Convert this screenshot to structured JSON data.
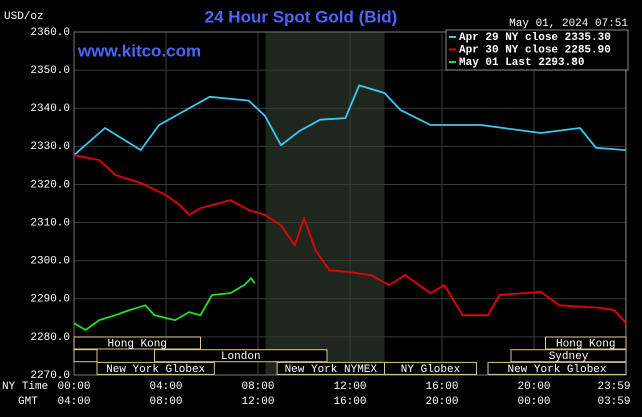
{
  "chart_data": {
    "type": "line",
    "title": "24 Hour Spot Gold (Bid)",
    "source": "www.kitco.com",
    "unit": "USD/oz",
    "timestamp": "May 01, 2024 07:51",
    "x_axis_labels": [
      "NY Time",
      "GMT"
    ],
    "xlim": [
      0,
      24
    ],
    "xticks": [
      {
        "value": 0,
        "label": "00:00"
      },
      {
        "value": 4,
        "label": "04:00"
      },
      {
        "value": 8,
        "label": "08:00"
      },
      {
        "value": 12,
        "label": "12:00"
      },
      {
        "value": 16,
        "label": "16:00"
      },
      {
        "value": 20,
        "label": "20:00"
      },
      {
        "value": 23.983,
        "label": "23:59"
      }
    ],
    "x2ticks": [
      {
        "value": 0,
        "label": "04:00"
      },
      {
        "value": 4,
        "label": "08:00"
      },
      {
        "value": 8,
        "label": "12:00"
      },
      {
        "value": 12,
        "label": "16:00"
      },
      {
        "value": 16,
        "label": "20:00"
      },
      {
        "value": 20,
        "label": "00:00"
      },
      {
        "value": 23.983,
        "label": "03:59"
      }
    ],
    "ylim": [
      2270,
      2360
    ],
    "yticks": [
      {
        "value": 2270,
        "label": "2270.0"
      },
      {
        "value": 2280,
        "label": "2280.0"
      },
      {
        "value": 2290,
        "label": "2290.0"
      },
      {
        "value": 2300,
        "label": "2300.0"
      },
      {
        "value": 2310,
        "label": "2310.0"
      },
      {
        "value": 2320,
        "label": "2320.0"
      },
      {
        "value": 2330,
        "label": "2330.0"
      },
      {
        "value": 2340,
        "label": "2340.0"
      },
      {
        "value": 2350,
        "label": "2350.0"
      },
      {
        "value": 2360,
        "label": "2360.0"
      }
    ],
    "grid": true,
    "legend": "upper right",
    "shaded_range": [
      8.33,
      13.5
    ],
    "sessions": [
      {
        "label": "Hong Kong",
        "row": 0,
        "start": 0,
        "end": 5.5
      },
      {
        "label": "Hong Kong",
        "row": 0,
        "start": 20.5,
        "end": 24
      },
      {
        "label": null,
        "row": 1,
        "start": 0,
        "end": 1
      },
      {
        "label": "London",
        "row": 1,
        "start": 3.5,
        "end": 11
      },
      {
        "label": "Sydney",
        "row": 1,
        "start": 19,
        "end": 24
      },
      {
        "label": "New York Globex",
        "row": 2,
        "start": 1,
        "end": 6.1
      },
      {
        "label": "New York NYMEX",
        "row": 2,
        "start": 8.83,
        "end": 13.5
      },
      {
        "label": "NY Globex",
        "row": 2,
        "start": 13.5,
        "end": 17.5
      },
      {
        "label": "New York Globex",
        "row": 2,
        "start": 18,
        "end": 24
      }
    ],
    "series": [
      {
        "name": "Apr 29 NY close 2335.30",
        "color": "#3cc8f0",
        "x": [
          0,
          1.35,
          2.9,
          3.7,
          5.9,
          7.6,
          8.3,
          9,
          9.8,
          10.7,
          11.8,
          12.4,
          13.5,
          14.2,
          15.5,
          17.7,
          20.3,
          22,
          22.7,
          24
        ],
        "values": [
          2327.7,
          2334.8,
          2329,
          2335.6,
          2343,
          2342,
          2338,
          2330.3,
          2334,
          2337,
          2337.4,
          2346,
          2344,
          2339.5,
          2335.6,
          2335.6,
          2333.5,
          2334.8,
          2329.6,
          2329
        ]
      },
      {
        "name": "Apr 30 NY close 2285.90",
        "color": "#e80000",
        "x": [
          0,
          1.1,
          1.8,
          2.9,
          4,
          4.6,
          5,
          5.5,
          6.8,
          7.6,
          8.3,
          9,
          9.6,
          10,
          10.5,
          11.1,
          12,
          12.9,
          13.7,
          14.4,
          15.5,
          16.1,
          16.9,
          18,
          18.5,
          20.3,
          21.1,
          22.9,
          23.5,
          24
        ],
        "values": [
          2327.7,
          2326.4,
          2322.5,
          2320.4,
          2317.2,
          2314.6,
          2312,
          2313.8,
          2315.9,
          2313.3,
          2312,
          2309.3,
          2304,
          2311.2,
          2302.8,
          2297.5,
          2297,
          2296.2,
          2293.6,
          2296.2,
          2291.5,
          2293.6,
          2285.7,
          2285.7,
          2291,
          2291.8,
          2288.3,
          2287.6,
          2287,
          2283.6
        ]
      },
      {
        "name": "May 01 Last 2293.80",
        "color": "#22e022",
        "x": [
          0,
          0.5,
          1.1,
          1.8,
          2.4,
          3.1,
          3.5,
          4.4,
          5,
          5.5,
          6,
          6.8,
          7.4,
          7.7,
          7.85
        ],
        "values": [
          2283.6,
          2281.8,
          2284.4,
          2285.7,
          2287,
          2288.3,
          2285.7,
          2284.4,
          2286.5,
          2285.7,
          2291,
          2291.5,
          2293.6,
          2295.4,
          2294.1
        ]
      }
    ]
  }
}
